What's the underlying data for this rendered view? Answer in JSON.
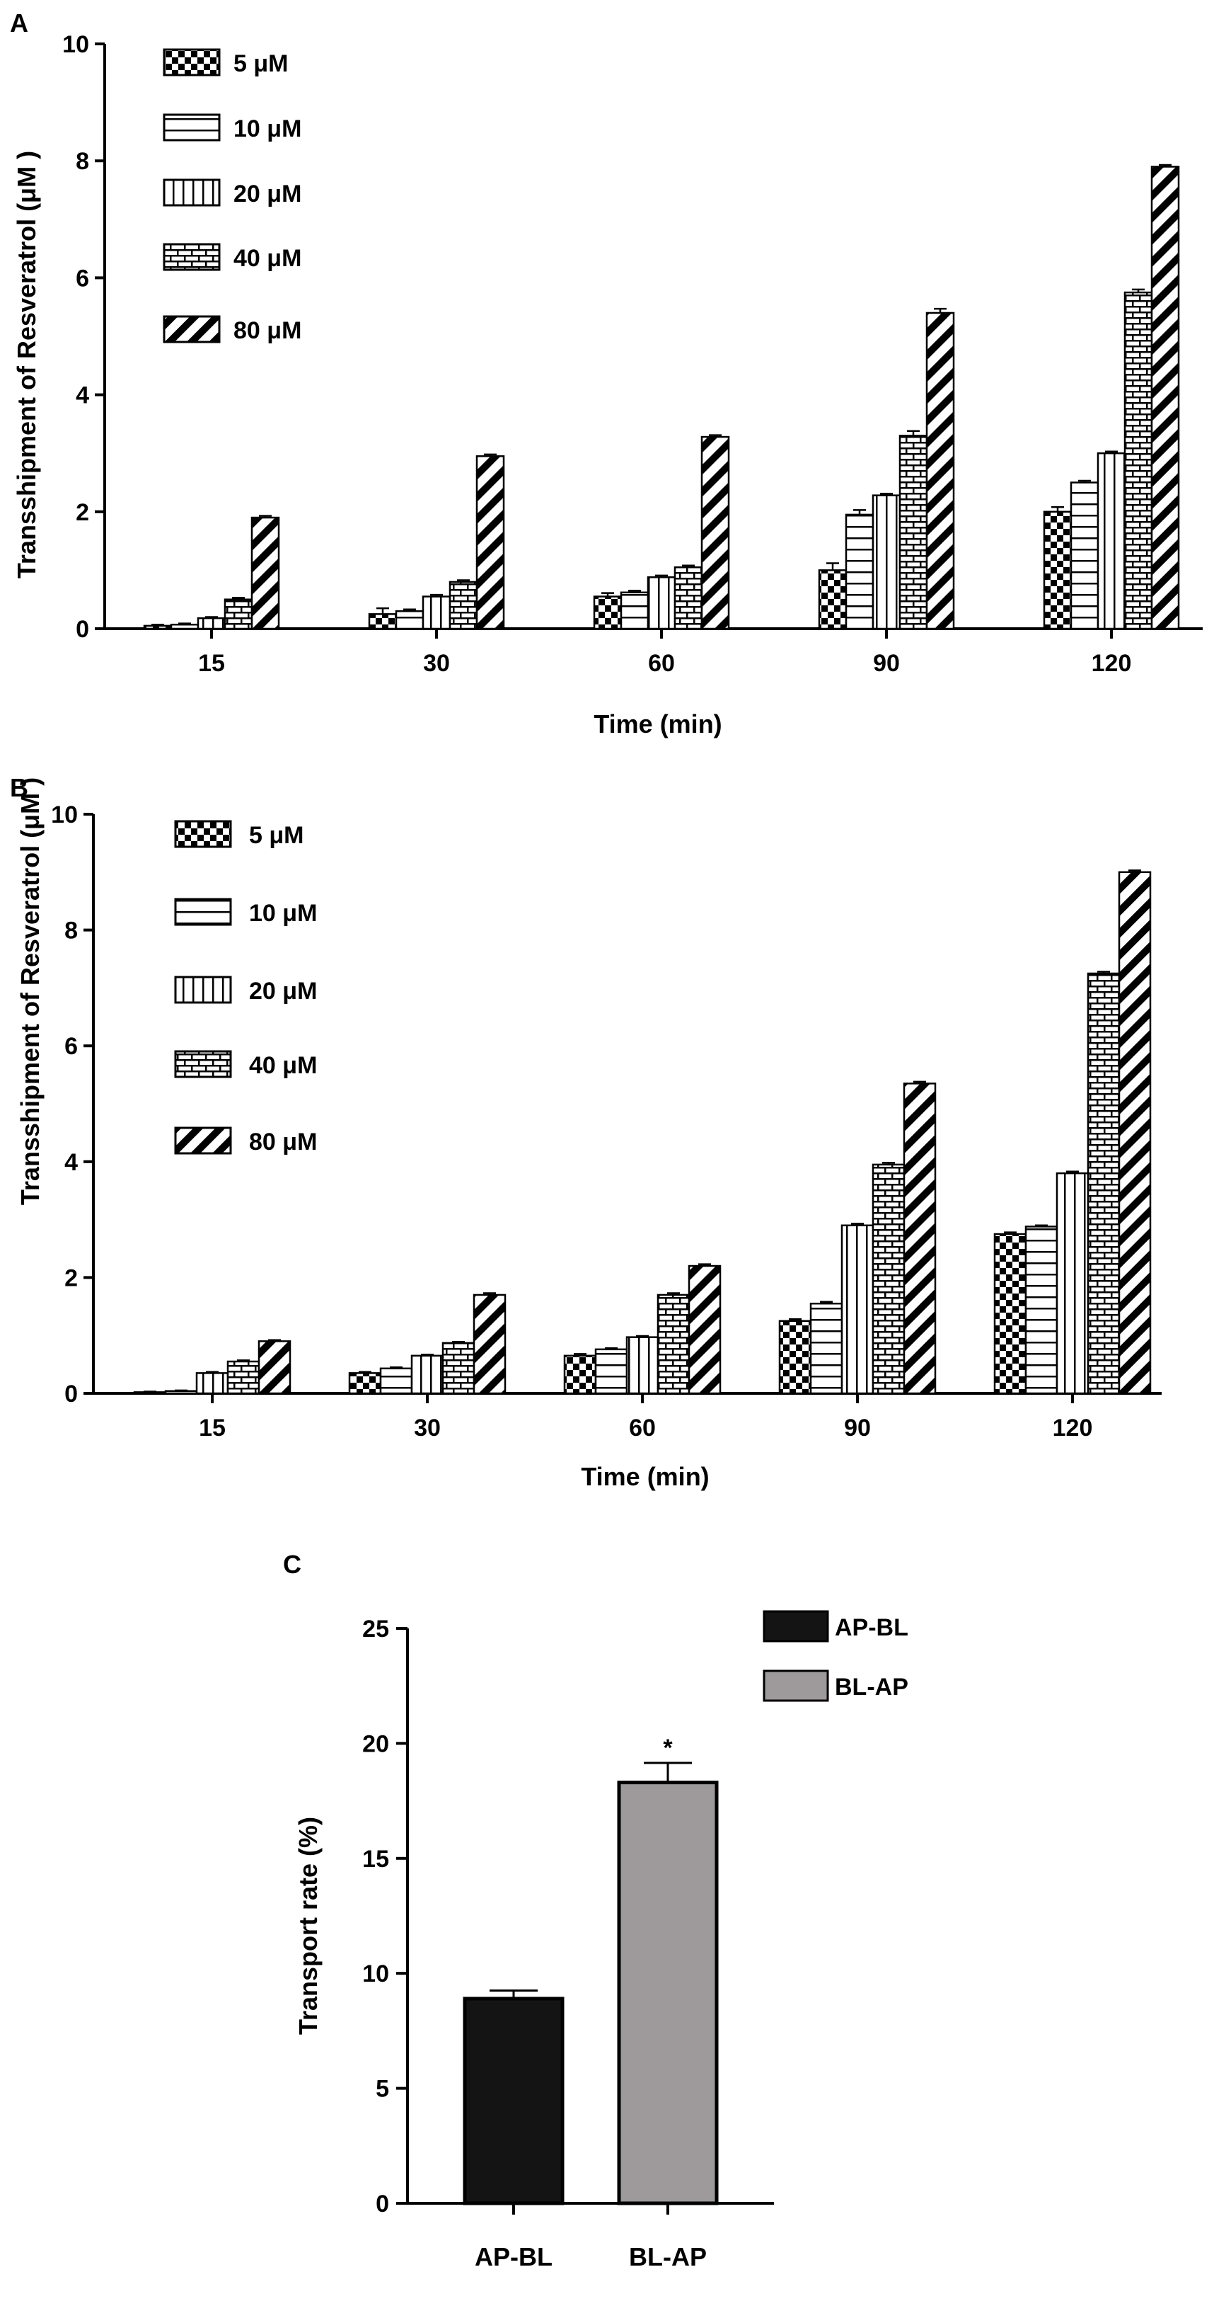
{
  "colors": {
    "ink": "#000000",
    "ap_bl": "#141414",
    "bl_ap": "#9e9a9b",
    "background": "#ffffff"
  },
  "chart_data": [
    {
      "panel": "A",
      "type": "bar",
      "title": "",
      "xlabel": "Time (min)",
      "ylabel": "Transshipment of Resveratrol (μM )",
      "ylim": [
        0,
        10
      ],
      "yticks": [
        "0",
        "2",
        "4",
        "6",
        "8",
        "10"
      ],
      "categories": [
        "15",
        "30",
        "60",
        "90",
        "120"
      ],
      "legend_position": "top-left",
      "series": [
        {
          "name": "5 μM",
          "pattern": "checker",
          "values": [
            0.05,
            0.25,
            0.55,
            1.0,
            2.0
          ],
          "errors": [
            0.02,
            0.1,
            0.06,
            0.12,
            0.08
          ]
        },
        {
          "name": "10 μM",
          "pattern": "hlines",
          "values": [
            0.07,
            0.3,
            0.62,
            1.95,
            2.5
          ],
          "errors": [
            0.02,
            0.03,
            0.03,
            0.08,
            0.03
          ]
        },
        {
          "name": "20 μM",
          "pattern": "vlines",
          "values": [
            0.18,
            0.55,
            0.88,
            2.28,
            3.0
          ],
          "errors": [
            0.02,
            0.03,
            0.03,
            0.03,
            0.03
          ]
        },
        {
          "name": "40 μM",
          "pattern": "brick",
          "values": [
            0.5,
            0.8,
            1.05,
            3.3,
            5.75
          ],
          "errors": [
            0.03,
            0.03,
            0.03,
            0.08,
            0.05
          ]
        },
        {
          "name": "80 μM",
          "pattern": "diag",
          "values": [
            1.9,
            2.95,
            3.28,
            5.4,
            7.9
          ],
          "errors": [
            0.03,
            0.03,
            0.03,
            0.07,
            0.03
          ]
        }
      ]
    },
    {
      "panel": "B",
      "type": "bar",
      "title": "",
      "xlabel": "Time (min)",
      "ylabel": "Transshipment of Resveratrol (μM )",
      "ylim": [
        0,
        10
      ],
      "yticks": [
        "0",
        "2",
        "4",
        "6",
        "8",
        "10"
      ],
      "categories": [
        "15",
        "30",
        "60",
        "90",
        "120"
      ],
      "legend_position": "top-left",
      "series": [
        {
          "name": "5 μM",
          "pattern": "checker",
          "values": [
            0.02,
            0.35,
            0.65,
            1.25,
            2.75
          ],
          "errors": [
            0.01,
            0.02,
            0.03,
            0.03,
            0.03
          ]
        },
        {
          "name": "10 μM",
          "pattern": "hlines",
          "values": [
            0.04,
            0.43,
            0.76,
            1.55,
            2.88
          ],
          "errors": [
            0.01,
            0.02,
            0.02,
            0.03,
            0.02
          ]
        },
        {
          "name": "20 μM",
          "pattern": "vlines",
          "values": [
            0.35,
            0.65,
            0.97,
            2.9,
            3.8
          ],
          "errors": [
            0.02,
            0.02,
            0.02,
            0.03,
            0.03
          ]
        },
        {
          "name": "40 μM",
          "pattern": "brick",
          "values": [
            0.55,
            0.87,
            1.7,
            3.95,
            7.25
          ],
          "errors": [
            0.02,
            0.02,
            0.03,
            0.03,
            0.03
          ]
        },
        {
          "name": "80 μM",
          "pattern": "diag",
          "values": [
            0.9,
            1.7,
            2.2,
            5.35,
            9.0
          ],
          "errors": [
            0.02,
            0.03,
            0.03,
            0.03,
            0.03
          ]
        }
      ]
    },
    {
      "panel": "C",
      "type": "bar",
      "title": "",
      "xlabel": "",
      "ylabel": "Transport rate (%)",
      "ylim": [
        0,
        25
      ],
      "yticks": [
        "0",
        "5",
        "10",
        "15",
        "20",
        "25"
      ],
      "categories": [
        "AP-BL",
        "BL-AP"
      ],
      "values": [
        8.9,
        18.3
      ],
      "errors": [
        0.35,
        0.85
      ],
      "annotations": [
        "",
        "*"
      ],
      "legend_position": "top-right",
      "legend": [
        "AP-BL",
        "BL-AP"
      ]
    }
  ]
}
